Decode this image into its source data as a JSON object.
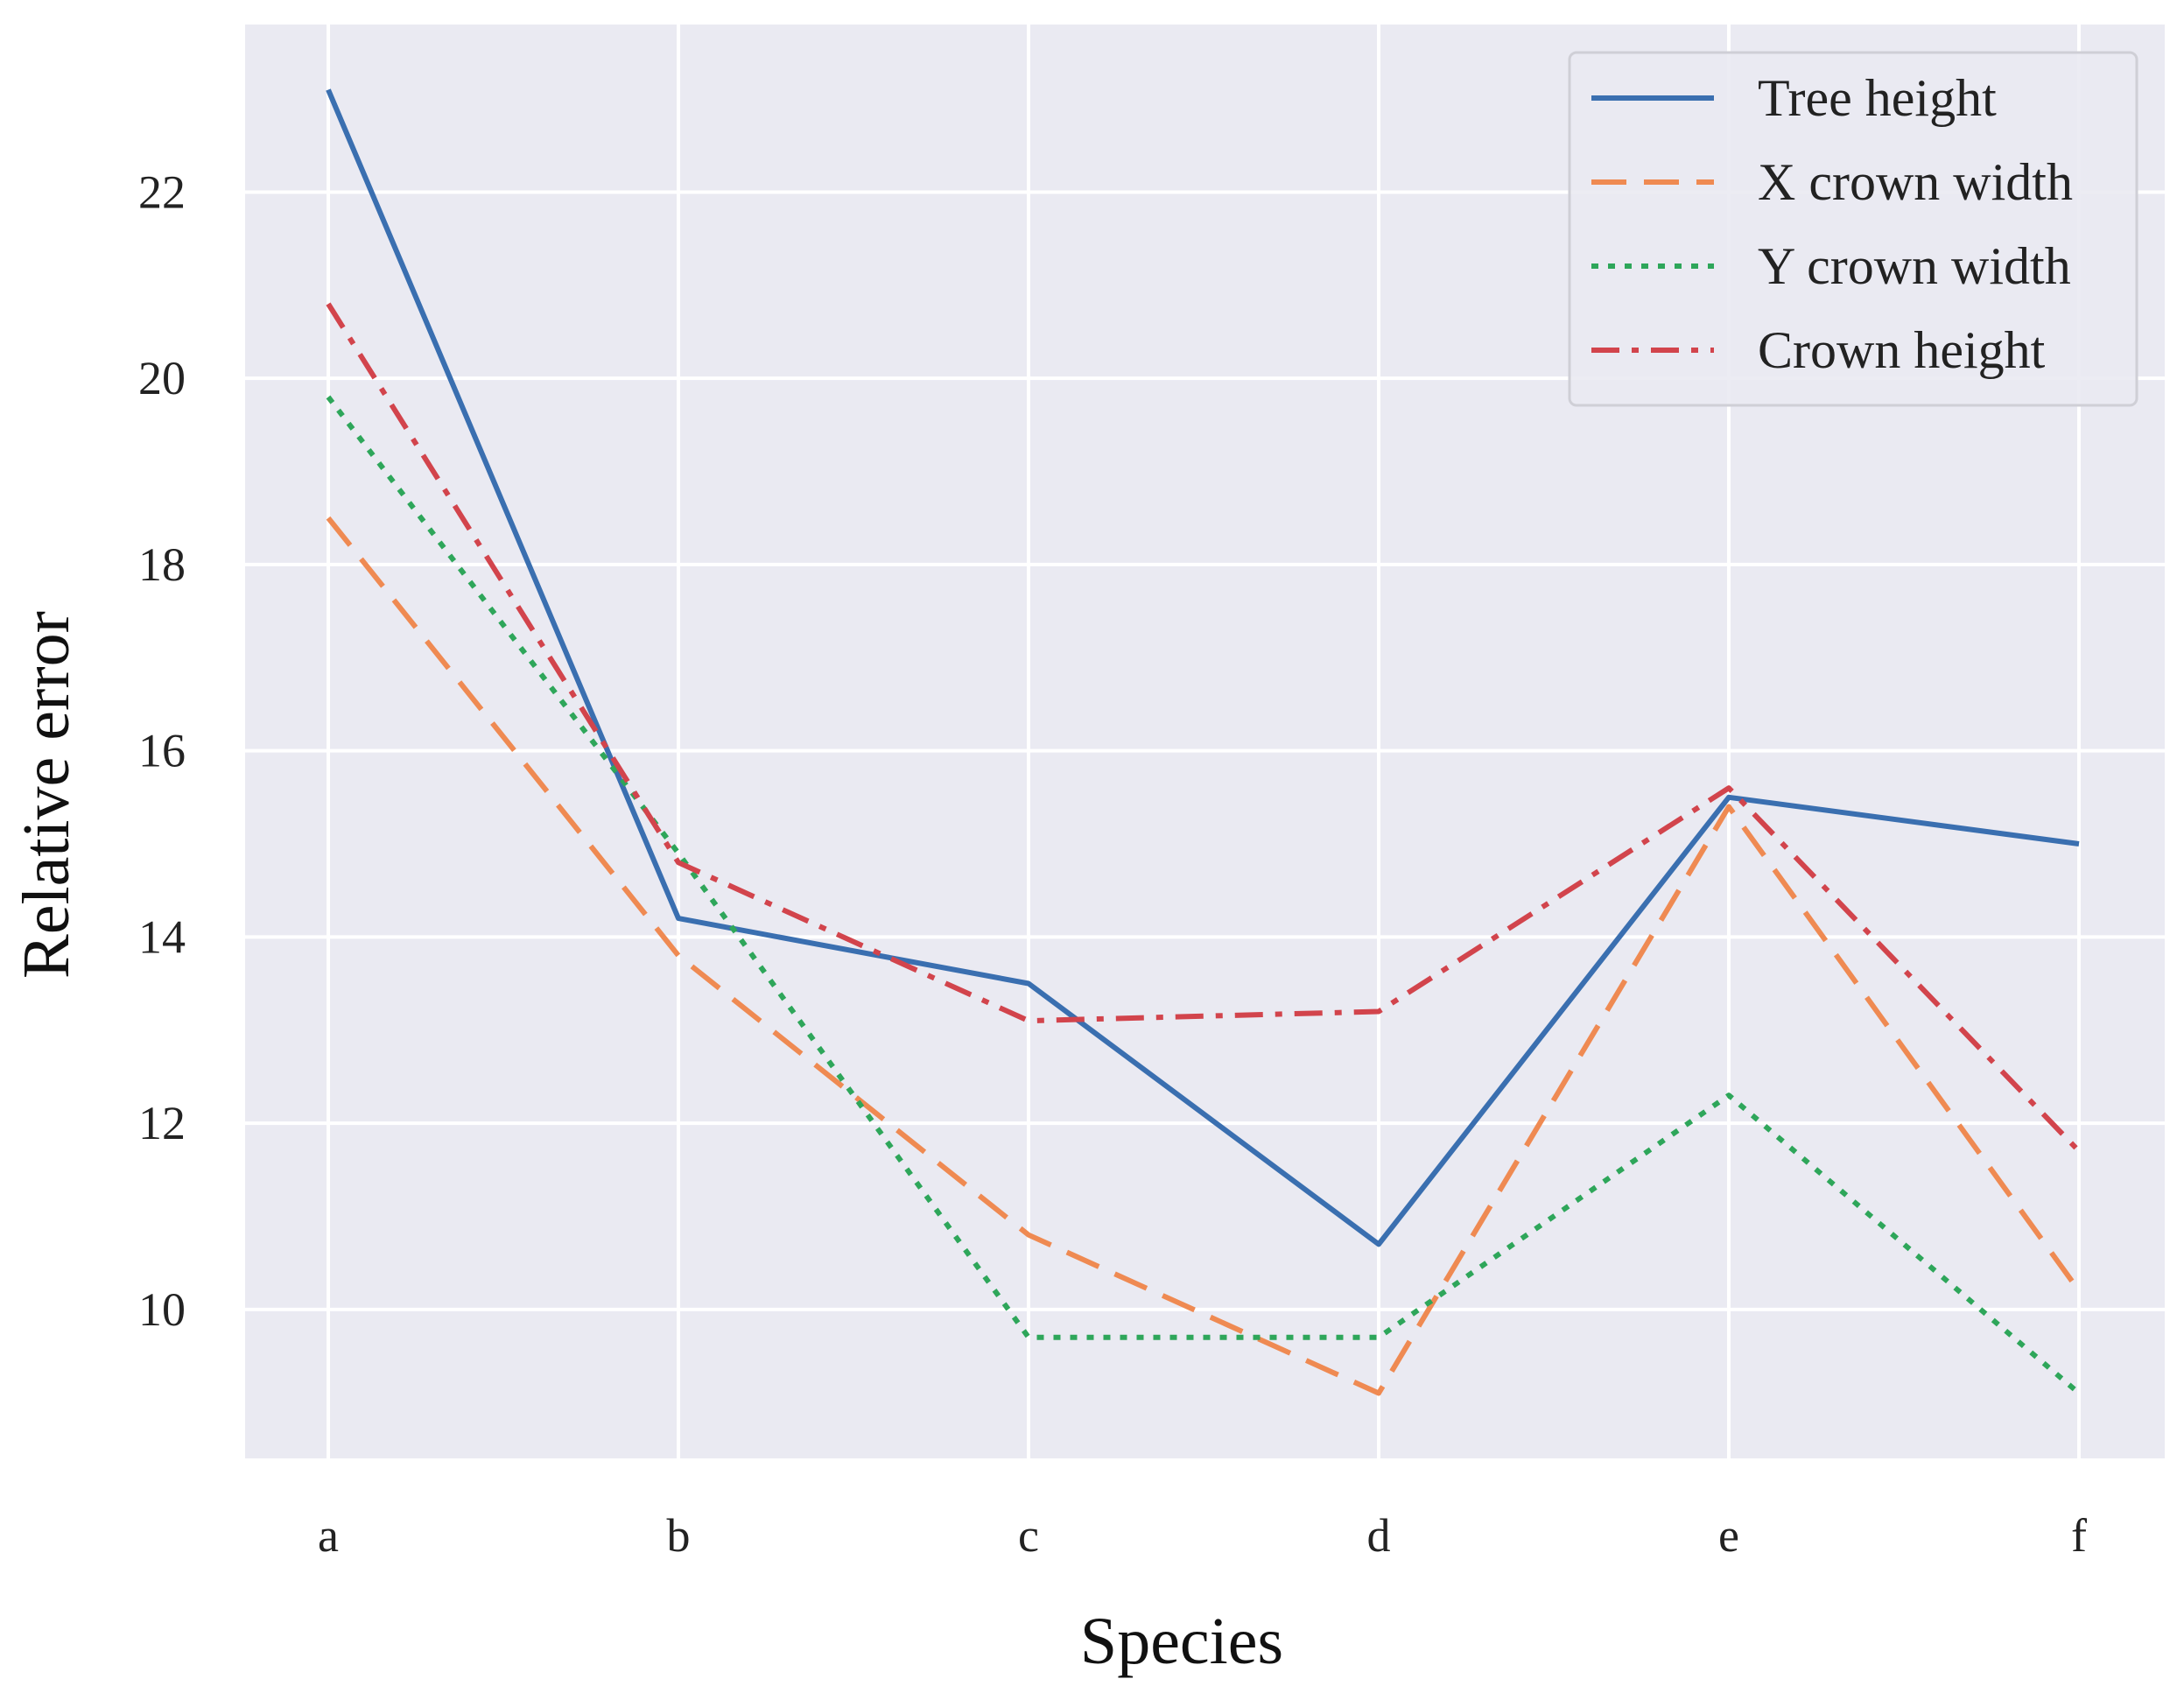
{
  "chart_data": {
    "type": "line",
    "title": "",
    "xlabel": "Species",
    "ylabel": "Relative error",
    "categories": [
      "a",
      "b",
      "c",
      "d",
      "e",
      "f"
    ],
    "ylim": [
      8.4,
      23.8
    ],
    "yticks": [
      10,
      12,
      14,
      16,
      18,
      20,
      22
    ],
    "grid": true,
    "legend_position": "top-right",
    "series": [
      {
        "name": "Tree height",
        "style": "solid",
        "color": "#3a6fb0",
        "values": [
          23.1,
          14.2,
          13.5,
          10.7,
          15.5,
          15.0
        ]
      },
      {
        "name": "X crown width",
        "style": "dashed",
        "color": "#ef8a52",
        "values": [
          18.5,
          13.8,
          10.8,
          9.1,
          15.4,
          10.2
        ]
      },
      {
        "name": "Y crown width",
        "style": "dotted",
        "color": "#2ea65a",
        "values": [
          19.8,
          14.9,
          9.7,
          9.7,
          12.3,
          9.1
        ]
      },
      {
        "name": "Crown height",
        "style": "dashdot",
        "color": "#d2444c",
        "values": [
          20.8,
          14.8,
          13.1,
          13.2,
          15.6,
          11.7
        ]
      }
    ]
  }
}
